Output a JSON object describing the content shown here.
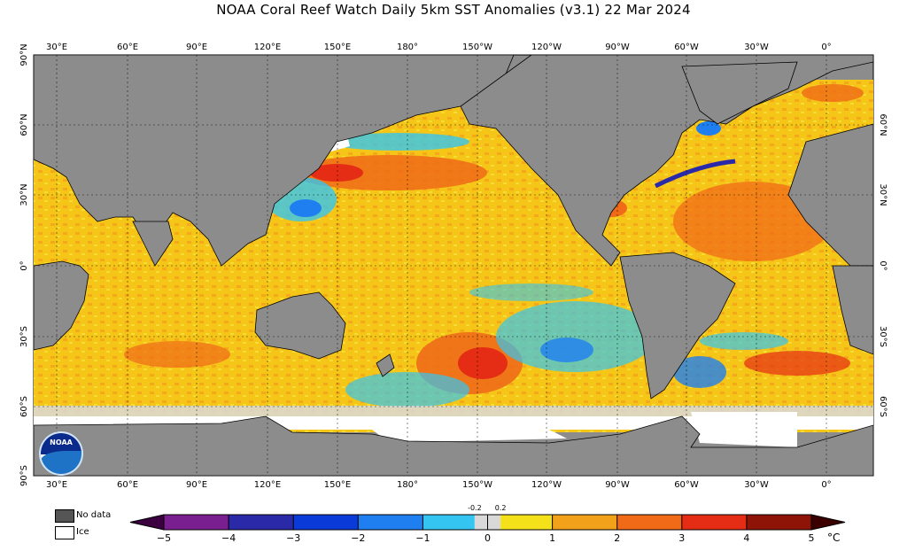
{
  "title": "NOAA Coral Reef Watch Daily 5km SST Anomalies  (v3.1)   22 Mar 2024",
  "map": {
    "lon_labels": [
      "30°E",
      "60°E",
      "90°E",
      "120°E",
      "150°E",
      "180°",
      "150°W",
      "120°W",
      "90°W",
      "60°W",
      "30°W",
      "0°"
    ],
    "lat_labels_left": [
      "90°N",
      "60°N",
      "30°N",
      "0°",
      "30°S",
      "60°S",
      "90°S"
    ],
    "lat_labels_right": [
      "60°N",
      "30°N",
      "0°",
      "30°S",
      "60°S"
    ]
  },
  "legend": {
    "no_data_label": "No data",
    "ice_label": "Ice",
    "no_data_color": "#555555",
    "ice_color": "#ffffff",
    "land_color": "#8c8c8c"
  },
  "colorbar": {
    "ticks": [
      "−5",
      "−4",
      "−3",
      "−2",
      "−1",
      "0",
      "1",
      "2",
      "3",
      "4",
      "5"
    ],
    "small_ticks": [
      "-0.2",
      "0.2"
    ],
    "unit": "°C",
    "colors": {
      "cold_extreme": "#3b0040",
      "purple": "#7a1f8f",
      "navy": "#2a2aa8",
      "blue": "#0a3ad8",
      "mid_blue": "#1f7ff0",
      "light_blue": "#34c6f0",
      "neutral": "#d9d9d9",
      "yellow": "#f5e11a",
      "orange_light": "#f2a21a",
      "orange": "#f06a18",
      "red": "#e52c14",
      "dark_red": "#8f1408",
      "hot_extreme": "#3a0000"
    }
  }
}
